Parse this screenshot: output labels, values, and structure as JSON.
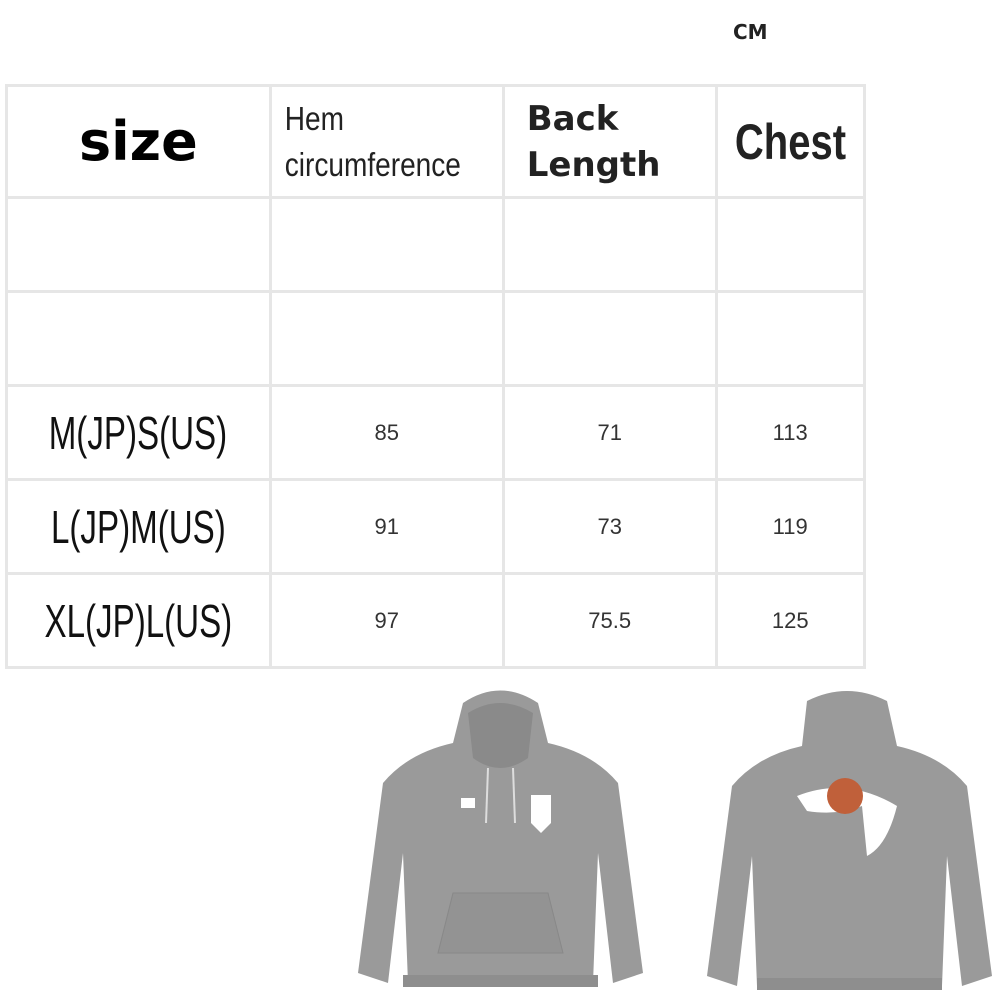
{
  "unit_label": "CM",
  "table": {
    "headers": [
      "size",
      "Hem circumference",
      "Back Length",
      "Chest"
    ],
    "header_lines": {
      "hem": [
        "Hem",
        "circumference"
      ],
      "back": [
        "Back",
        "Length"
      ]
    },
    "rows": [
      {
        "size": "M(JP)S(US)",
        "hem": "85",
        "back": "71",
        "chest": "113"
      },
      {
        "size": "L(JP)M(US)",
        "hem": "91",
        "back": "73",
        "chest": "119"
      },
      {
        "size": "XL(JP)L(US)",
        "hem": "97",
        "back": "75.5",
        "chest": "125"
      }
    ]
  },
  "colors": {
    "hoodie": "#9a9a9a",
    "grid": "#e6e6e6"
  }
}
